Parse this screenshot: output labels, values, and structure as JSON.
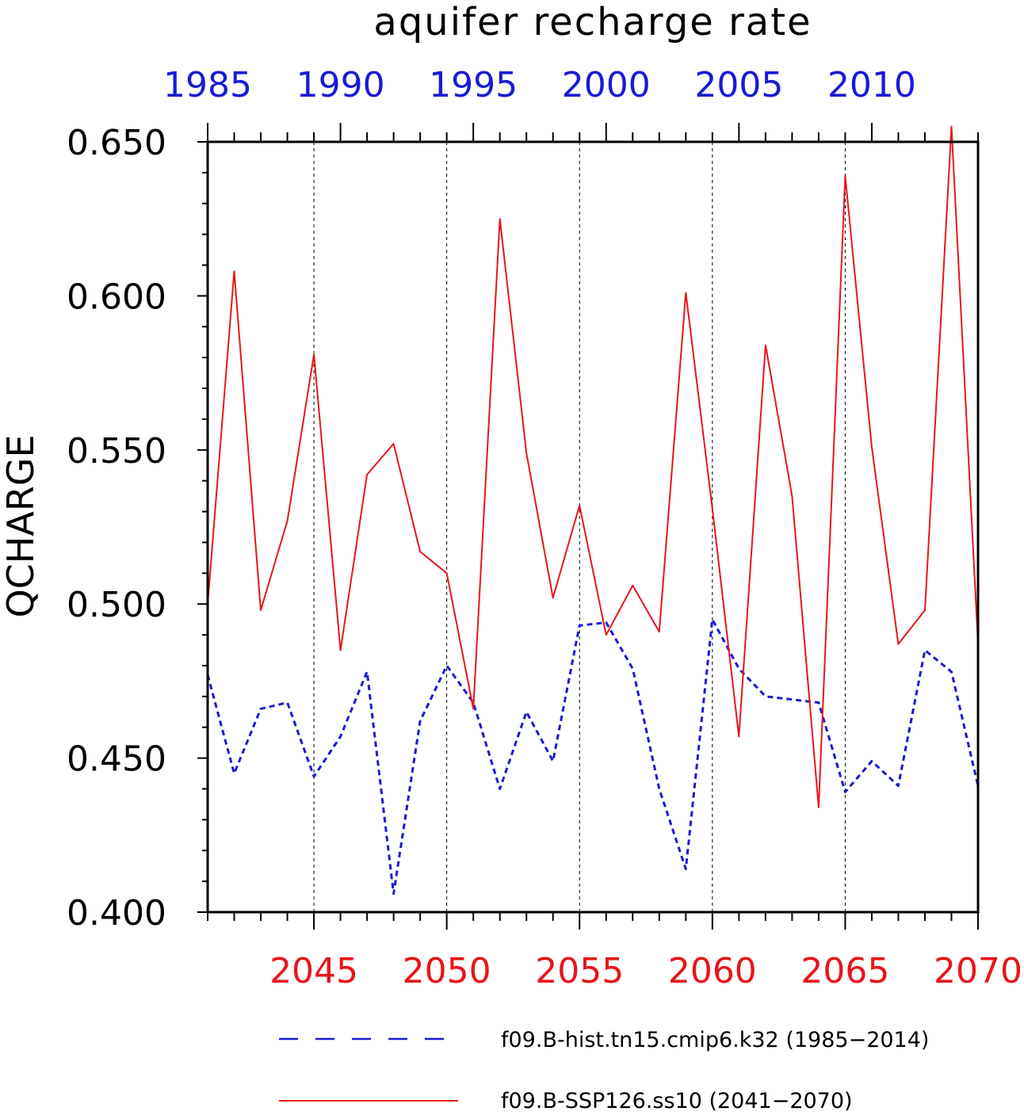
{
  "chart_data": {
    "type": "line",
    "title": "aquifer recharge rate",
    "ylabel": "QCHARGE",
    "ylim": [
      0.4,
      0.65
    ],
    "yticks": [
      0.4,
      0.45,
      0.5,
      0.55,
      0.6,
      0.65
    ],
    "ytick_labels": [
      "0.400",
      "0.450",
      "0.500",
      "0.550",
      "0.600",
      "0.650"
    ],
    "grid": "vertical dashed at major bottom-axis ticks",
    "legend_position": "bottom",
    "bottom_axis": {
      "xlim": [
        2041,
        2070
      ],
      "ticks": [
        2045,
        2050,
        2055,
        2060,
        2065,
        2070
      ],
      "labels": [
        "2045",
        "2050",
        "2055",
        "2060",
        "2065",
        "2070"
      ],
      "color": "#e8151b"
    },
    "top_axis": {
      "xlim": [
        1985,
        2014
      ],
      "ticks": [
        1985,
        1990,
        1995,
        2000,
        2005,
        2010
      ],
      "labels": [
        "1985",
        "1990",
        "1995",
        "2000",
        "2005",
        "2010"
      ],
      "color": "#1a1ad6"
    },
    "series": [
      {
        "name": "f09.B-hist.tn15.cmip6.k32 (1985−2014)",
        "axis": "top",
        "color": "#1a1ad6",
        "style": "dashed",
        "x": [
          1985,
          1986,
          1987,
          1988,
          1989,
          1990,
          1991,
          1992,
          1993,
          1994,
          1995,
          1996,
          1997,
          1998,
          1999,
          2000,
          2001,
          2002,
          2003,
          2004,
          2005,
          2006,
          2007,
          2008,
          2009,
          2010,
          2011,
          2012,
          2013,
          2014
        ],
        "values": [
          0.477,
          0.445,
          0.466,
          0.468,
          0.444,
          0.457,
          0.478,
          0.406,
          0.462,
          0.48,
          0.468,
          0.44,
          0.465,
          0.449,
          0.493,
          0.494,
          0.479,
          0.44,
          0.414,
          0.495,
          0.479,
          0.47,
          0.469,
          0.468,
          0.439,
          0.449,
          0.441,
          0.485,
          0.478,
          0.441
        ]
      },
      {
        "name": "f09.B-SSP126.ss10 (2041−2070)",
        "axis": "bottom",
        "color": "#e8151b",
        "style": "solid",
        "x": [
          2041,
          2042,
          2043,
          2044,
          2045,
          2046,
          2047,
          2048,
          2049,
          2050,
          2051,
          2052,
          2053,
          2054,
          2055,
          2056,
          2057,
          2058,
          2059,
          2060,
          2061,
          2062,
          2063,
          2064,
          2065,
          2066,
          2067,
          2068,
          2069,
          2070
        ],
        "values": [
          0.5,
          0.608,
          0.498,
          0.527,
          0.581,
          0.485,
          0.542,
          0.552,
          0.517,
          0.51,
          0.466,
          0.625,
          0.549,
          0.502,
          0.532,
          0.49,
          0.506,
          0.491,
          0.601,
          0.531,
          0.457,
          0.584,
          0.535,
          0.434,
          0.639,
          0.551,
          0.487,
          0.498,
          0.655,
          0.487
        ]
      }
    ]
  }
}
